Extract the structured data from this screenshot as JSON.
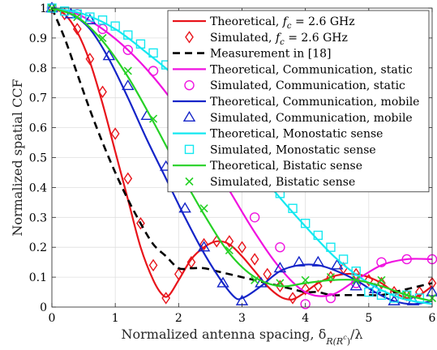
{
  "chart_data": {
    "type": "line",
    "title": "",
    "xlabel": "Normalized antenna spacing, δ",
    "xlabel_sub": "R(R",
    "xlabel_subsup": "c",
    "xlabel_sub_close": ")",
    "xlabel_tail": "/λ",
    "ylabel": "Normalized spatial CCF",
    "xlim": [
      0,
      6
    ],
    "ylim": [
      0,
      1
    ],
    "xticks": [
      "0",
      "1",
      "2",
      "3",
      "4",
      "5",
      "6"
    ],
    "yticks": [
      "0",
      "0.1",
      "0.2",
      "0.3",
      "0.4",
      "0.5",
      "0.6",
      "0.7",
      "0.8",
      "0.9",
      "1"
    ],
    "grid": true,
    "legend_position": "top-right",
    "series": [
      {
        "name": "Theoretical, f_c = 2.6 GHz",
        "legend_main": "Theoretical, ",
        "legend_math": "f",
        "legend_sub": "c",
        "legend_tail": " = 2.6 GHz",
        "style": "line",
        "color": "#e8141b",
        "dash": "solid",
        "x": [
          0,
          0.2,
          0.4,
          0.6,
          0.8,
          1.0,
          1.2,
          1.4,
          1.6,
          1.75,
          1.85,
          2.0,
          2.2,
          2.4,
          2.6,
          2.8,
          3.0,
          3.2,
          3.4,
          3.6,
          3.75,
          3.85,
          4.0,
          4.2,
          4.4,
          4.6,
          4.8,
          5.0,
          5.2,
          5.4,
          5.6,
          5.8,
          6.0
        ],
        "y": [
          1.0,
          0.98,
          0.92,
          0.82,
          0.68,
          0.52,
          0.36,
          0.2,
          0.09,
          0.04,
          0.04,
          0.09,
          0.16,
          0.2,
          0.22,
          0.21,
          0.17,
          0.12,
          0.07,
          0.035,
          0.025,
          0.03,
          0.05,
          0.08,
          0.1,
          0.11,
          0.11,
          0.1,
          0.08,
          0.05,
          0.03,
          0.04,
          0.07
        ]
      },
      {
        "name": "Simulated, f_c = 2.6 GHz",
        "legend_main": "Simulated, ",
        "legend_math": "f",
        "legend_sub": "c",
        "legend_tail": " = 2.6 GHz",
        "style": "marker",
        "marker": "diamond",
        "color": "#e8141b",
        "x": [
          0,
          0.2,
          0.4,
          0.6,
          0.8,
          1.0,
          1.2,
          1.4,
          1.6,
          1.8,
          2.0,
          2.2,
          2.4,
          2.6,
          2.8,
          3.0,
          3.2,
          3.4,
          3.6,
          3.8,
          4.0,
          4.2,
          4.4,
          4.6,
          4.8,
          5.0,
          5.2,
          5.4,
          5.6,
          5.8,
          6.0
        ],
        "y": [
          1.0,
          0.98,
          0.93,
          0.83,
          0.72,
          0.58,
          0.43,
          0.28,
          0.14,
          0.03,
          0.11,
          0.15,
          0.21,
          0.22,
          0.22,
          0.2,
          0.16,
          0.11,
          0.07,
          0.03,
          0.06,
          0.07,
          0.1,
          0.13,
          0.11,
          0.09,
          0.08,
          0.05,
          0.04,
          0.05,
          0.08
        ]
      },
      {
        "name": "Measurement in [18]",
        "style": "line",
        "color": "#000000",
        "dash": "dashed",
        "x": [
          0,
          0.2,
          0.4,
          0.6,
          0.8,
          1.0,
          1.2,
          1.4,
          1.6,
          1.8,
          2.0,
          2.2,
          2.4,
          2.6,
          2.8,
          3.0,
          3.2,
          3.4,
          3.6,
          3.8,
          4.0,
          4.2,
          4.4,
          4.6,
          4.8,
          5.0,
          5.2,
          5.4,
          5.6,
          5.8,
          6.0
        ],
        "y": [
          1.0,
          0.9,
          0.78,
          0.66,
          0.55,
          0.45,
          0.36,
          0.28,
          0.21,
          0.17,
          0.13,
          0.13,
          0.13,
          0.12,
          0.11,
          0.1,
          0.09,
          0.08,
          0.07,
          0.06,
          0.05,
          0.05,
          0.04,
          0.04,
          0.04,
          0.04,
          0.04,
          0.05,
          0.06,
          0.07,
          0.08
        ]
      },
      {
        "name": "Theoretical, Communication, static",
        "style": "line",
        "color": "#f012e0",
        "dash": "solid",
        "x": [
          0,
          0.4,
          0.8,
          1.2,
          1.6,
          2.0,
          2.4,
          2.8,
          3.2,
          3.6,
          4.0,
          4.4,
          4.8,
          5.2,
          5.6,
          6.0
        ],
        "y": [
          1.0,
          0.98,
          0.93,
          0.86,
          0.77,
          0.66,
          0.53,
          0.39,
          0.25,
          0.13,
          0.05,
          0.04,
          0.09,
          0.14,
          0.16,
          0.16
        ]
      },
      {
        "name": "Simulated, Communication, static",
        "style": "marker",
        "marker": "circle",
        "color": "#f012e0",
        "x": [
          0,
          0.4,
          0.8,
          1.2,
          1.6,
          2.0,
          2.4,
          2.8,
          3.2,
          3.6,
          4.0,
          4.4,
          4.8,
          5.2,
          5.6,
          6.0
        ],
        "y": [
          1.0,
          0.98,
          0.93,
          0.86,
          0.79,
          0.69,
          0.54,
          0.41,
          0.3,
          0.2,
          0.01,
          0.03,
          0.08,
          0.15,
          0.16,
          0.16
        ]
      },
      {
        "name": "Theoretical, Communication, mobile",
        "style": "line",
        "color": "#1424c8",
        "dash": "solid",
        "x": [
          0,
          0.3,
          0.6,
          0.9,
          1.2,
          1.5,
          1.8,
          2.1,
          2.4,
          2.7,
          2.9,
          3.0,
          3.1,
          3.3,
          3.6,
          3.9,
          4.2,
          4.5,
          4.8,
          5.1,
          5.4,
          5.7,
          6.0
        ],
        "y": [
          1.0,
          0.98,
          0.93,
          0.83,
          0.7,
          0.56,
          0.43,
          0.3,
          0.18,
          0.08,
          0.03,
          0.03,
          0.04,
          0.07,
          0.12,
          0.14,
          0.14,
          0.12,
          0.09,
          0.05,
          0.02,
          0.01,
          0.02
        ]
      },
      {
        "name": "Simulated, Communication, mobile",
        "style": "marker",
        "marker": "triangle",
        "color": "#1424c8",
        "x": [
          0,
          0.3,
          0.6,
          0.9,
          1.2,
          1.5,
          1.8,
          2.1,
          2.4,
          2.7,
          3.0,
          3.3,
          3.6,
          3.9,
          4.2,
          4.5,
          4.8,
          5.1,
          5.4,
          5.7,
          6.0
        ],
        "y": [
          1.0,
          0.98,
          0.96,
          0.84,
          0.74,
          0.64,
          0.47,
          0.33,
          0.2,
          0.08,
          0.02,
          0.08,
          0.13,
          0.15,
          0.15,
          0.14,
          0.07,
          0.06,
          0.02,
          0.02,
          0.05
        ]
      },
      {
        "name": "Theoretical, Monostatic sense",
        "style": "line",
        "color": "#14e8f0",
        "dash": "solid",
        "x": [
          0,
          0.5,
          1.0,
          1.5,
          2.0,
          2.5,
          3.0,
          3.5,
          4.0,
          4.5,
          5.0,
          5.5,
          6.0
        ],
        "y": [
          1.0,
          0.98,
          0.93,
          0.85,
          0.76,
          0.64,
          0.52,
          0.39,
          0.27,
          0.16,
          0.08,
          0.03,
          0.01
        ]
      },
      {
        "name": "Simulated, Monostatic sense",
        "style": "marker",
        "marker": "square",
        "color": "#14e8f0",
        "x": [
          0,
          0.2,
          0.4,
          0.6,
          0.8,
          1.0,
          1.2,
          1.4,
          1.6,
          1.8,
          2.0,
          2.2,
          2.4,
          2.6,
          2.8,
          3.0,
          3.2,
          3.4,
          3.6,
          3.8,
          4.0,
          4.2,
          4.4,
          4.6,
          4.8,
          5.0,
          5.2,
          5.4,
          5.6,
          5.8
        ],
        "y": [
          1.0,
          0.99,
          0.98,
          0.97,
          0.96,
          0.94,
          0.91,
          0.88,
          0.85,
          0.81,
          0.77,
          0.73,
          0.68,
          0.63,
          0.58,
          0.53,
          0.48,
          0.43,
          0.38,
          0.33,
          0.28,
          0.24,
          0.2,
          0.16,
          0.12,
          0.05,
          0.04,
          0.03,
          0.04,
          0.03
        ]
      },
      {
        "name": "Theoretical, Bistatic sense",
        "style": "line",
        "color": "#26d126",
        "dash": "solid",
        "x": [
          0,
          0.4,
          0.8,
          1.2,
          1.6,
          2.0,
          2.4,
          2.8,
          3.2,
          3.6,
          4.0,
          4.4,
          4.8,
          5.2,
          5.6,
          6.0
        ],
        "y": [
          1.0,
          0.97,
          0.89,
          0.77,
          0.62,
          0.46,
          0.31,
          0.18,
          0.1,
          0.07,
          0.08,
          0.09,
          0.09,
          0.07,
          0.04,
          0.02
        ]
      },
      {
        "name": "Simulated, Bistatic sense",
        "style": "marker",
        "marker": "x",
        "color": "#26d126",
        "x": [
          0,
          0.4,
          0.8,
          1.2,
          1.6,
          2.0,
          2.4,
          2.8,
          3.2,
          3.6,
          4.0,
          4.4,
          4.8,
          5.2,
          5.6,
          6.0
        ],
        "y": [
          1.0,
          0.97,
          0.9,
          0.79,
          0.63,
          0.47,
          0.33,
          0.19,
          0.09,
          0.08,
          0.09,
          0.1,
          0.09,
          0.09,
          0.04,
          0.03
        ]
      }
    ]
  }
}
